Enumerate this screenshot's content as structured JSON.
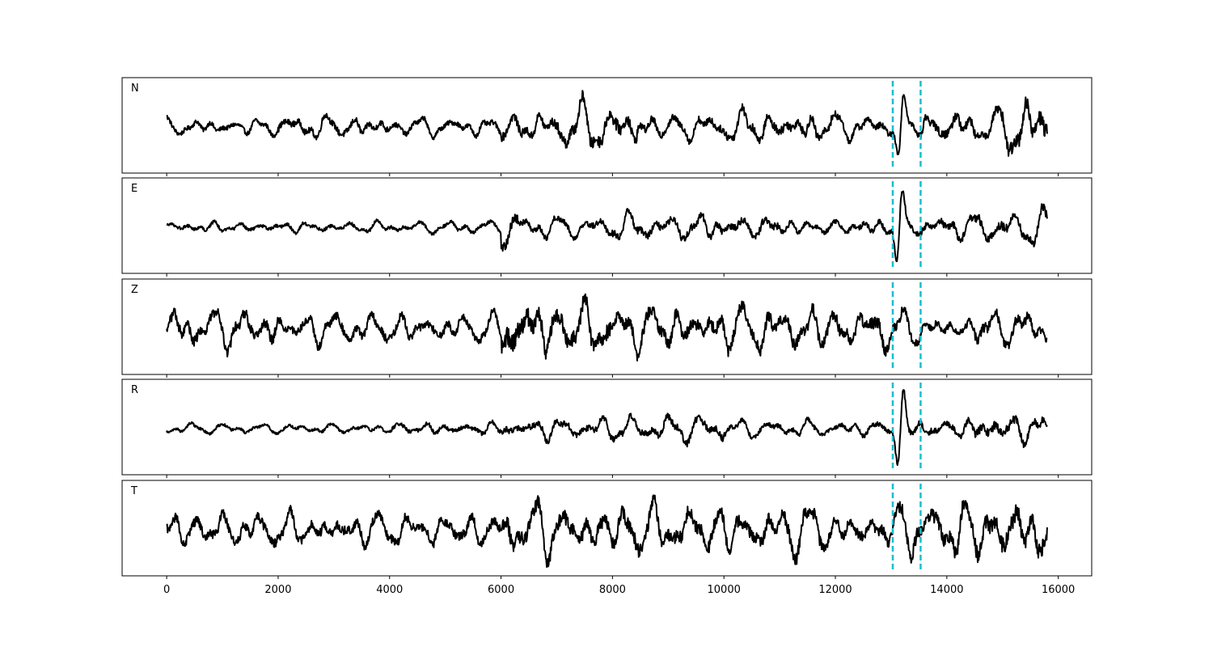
{
  "chart_data": {
    "type": "line",
    "xlim": [
      -800,
      16600
    ],
    "x_ticks": [
      "0",
      "2000",
      "4000",
      "6000",
      "8000",
      "10000",
      "12000",
      "14000",
      "16000"
    ],
    "x_tick_values": [
      0,
      2000,
      4000,
      6000,
      8000,
      10000,
      12000,
      14000,
      16000
    ],
    "x_range": [
      0,
      15800
    ],
    "grid": false,
    "line_color": "#000000",
    "pick_color": "#17becf",
    "picks": [
      13030,
      13530
    ],
    "series": [
      {
        "name": "N",
        "segments": [
          {
            "x": [
              0,
              2000
            ],
            "amp": 0.2
          },
          {
            "x": [
              2000,
              4000
            ],
            "amp": 0.28
          },
          {
            "x": [
              4000,
              6000
            ],
            "amp": 0.22
          },
          {
            "x": [
              6000,
              7000
            ],
            "amp": 0.38
          },
          {
            "x": [
              7000,
              8500
            ],
            "amp": 0.55
          },
          {
            "x": [
              8500,
              10000
            ],
            "amp": 0.32
          },
          {
            "x": [
              10000,
              12000
            ],
            "amp": 0.4
          },
          {
            "x": [
              12000,
              13030
            ],
            "amp": 0.28
          },
          {
            "x": [
              13030,
              13530
            ],
            "amp": 0.85,
            "burst": 13180
          },
          {
            "x": [
              13530,
              15000
            ],
            "amp": 0.4
          },
          {
            "x": [
              15000,
              15800
            ],
            "amp": 0.7
          }
        ]
      },
      {
        "name": "E",
        "segments": [
          {
            "x": [
              0,
              6000
            ],
            "amp": 0.15
          },
          {
            "x": [
              6000,
              6300
            ],
            "amp": 0.45
          },
          {
            "x": [
              6300,
              8000
            ],
            "amp": 0.25
          },
          {
            "x": [
              8000,
              11000
            ],
            "amp": 0.32
          },
          {
            "x": [
              11000,
              13030
            ],
            "amp": 0.22
          },
          {
            "x": [
              13030,
              13530
            ],
            "amp": 0.95,
            "burst": 13150
          },
          {
            "x": [
              13530,
              14500
            ],
            "amp": 0.3
          },
          {
            "x": [
              14500,
              15800
            ],
            "amp": 0.4
          }
        ]
      },
      {
        "name": "Z",
        "segments": [
          {
            "x": [
              0,
              2000
            ],
            "amp": 0.48
          },
          {
            "x": [
              2000,
              4000
            ],
            "amp": 0.38
          },
          {
            "x": [
              4000,
              6000
            ],
            "amp": 0.35
          },
          {
            "x": [
              6000,
              6500
            ],
            "amp": 0.9
          },
          {
            "x": [
              6500,
              8000
            ],
            "amp": 0.7
          },
          {
            "x": [
              8000,
              11000
            ],
            "amp": 0.55
          },
          {
            "x": [
              11000,
              13030
            ],
            "amp": 0.55
          },
          {
            "x": [
              13030,
              13530
            ],
            "amp": 0.4
          },
          {
            "x": [
              13530,
              14500
            ],
            "amp": 0.3
          },
          {
            "x": [
              14500,
              15800
            ],
            "amp": 0.45
          }
        ]
      },
      {
        "name": "R",
        "segments": [
          {
            "x": [
              0,
              4000
            ],
            "amp": 0.12
          },
          {
            "x": [
              4000,
              6000
            ],
            "amp": 0.18
          },
          {
            "x": [
              6000,
              8000
            ],
            "amp": 0.28
          },
          {
            "x": [
              8000,
              10000
            ],
            "amp": 0.3
          },
          {
            "x": [
              10000,
              13030
            ],
            "amp": 0.2
          },
          {
            "x": [
              13030,
              13530
            ],
            "amp": 0.95,
            "burst": 13170
          },
          {
            "x": [
              13530,
              14500
            ],
            "amp": 0.28
          },
          {
            "x": [
              14500,
              15800
            ],
            "amp": 0.4
          }
        ]
      },
      {
        "name": "T",
        "segments": [
          {
            "x": [
              0,
              2000
            ],
            "amp": 0.42
          },
          {
            "x": [
              2000,
              6000
            ],
            "amp": 0.4
          },
          {
            "x": [
              6000,
              8000
            ],
            "amp": 0.65
          },
          {
            "x": [
              8000,
              12000
            ],
            "amp": 0.6
          },
          {
            "x": [
              12000,
              13030
            ],
            "amp": 0.45
          },
          {
            "x": [
              13030,
              13530
            ],
            "amp": 0.6
          },
          {
            "x": [
              13530,
              14500
            ],
            "amp": 0.7
          },
          {
            "x": [
              14500,
              15800
            ],
            "amp": 0.8
          }
        ]
      }
    ]
  }
}
